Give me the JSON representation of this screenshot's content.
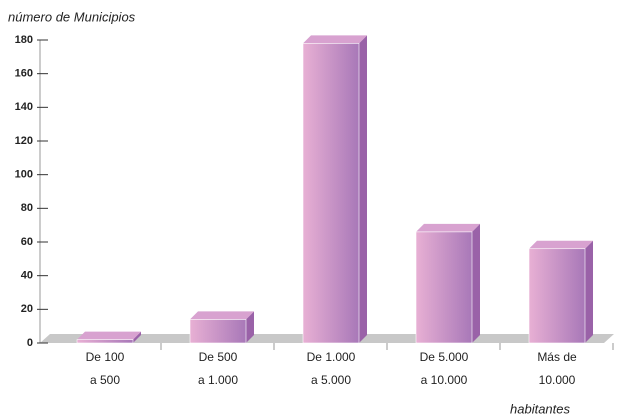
{
  "chart_data": {
    "type": "bar3d",
    "y_axis_label": "número de Municipios",
    "x_axis_label": "habitantes",
    "categories": [
      [
        "De 100",
        "a 500"
      ],
      [
        "De 500",
        "a 1.000"
      ],
      [
        "De 1.000",
        "a 5.000"
      ],
      [
        "De 5.000",
        "a 10.000"
      ],
      [
        "Más de",
        "10.000"
      ]
    ],
    "values": [
      2,
      14,
      178,
      66,
      56
    ],
    "color": "#c08ac4",
    "ylim": [
      0,
      180
    ],
    "yticks": [
      0,
      20,
      40,
      60,
      80,
      100,
      120,
      140,
      160,
      180
    ]
  }
}
